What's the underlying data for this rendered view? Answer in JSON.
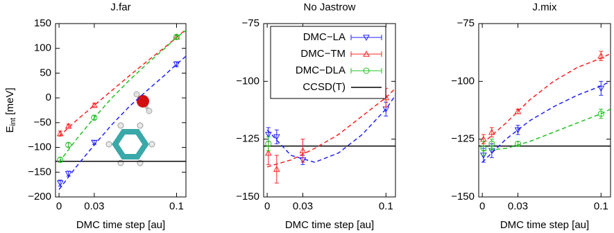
{
  "chart_data": [
    {
      "type": "scatter",
      "title": "J.far",
      "ylabel": [
        "E",
        "int",
        " [meV]"
      ],
      "xlabel": "DMC time step [au]",
      "x": [
        0.001,
        0.008,
        0.03,
        0.1
      ],
      "xlim": [
        -0.003,
        0.108
      ],
      "xticks": [
        0,
        0.03,
        0.1
      ],
      "ylim": [
        -200,
        150
      ],
      "yticks": [
        {
          "value": -200,
          "label": "−200"
        },
        {
          "value": -150,
          "label": "−150"
        },
        {
          "value": -100,
          "label": "−100"
        },
        {
          "value": -50,
          "label": "−50"
        },
        0,
        50,
        100,
        150
      ],
      "legend": false,
      "series": [
        {
          "name": "DMC−LA",
          "color": "#2020ff",
          "marker": "triangle-down",
          "values": [
            -172,
            -153,
            -90,
            68
          ],
          "errors": [
            6,
            5,
            4,
            5
          ],
          "fit": {
            "x": [
              0,
              0.015,
              0.03,
              0.045,
              0.06,
              0.075,
              0.09,
              0.1,
              0.108
            ],
            "values": [
              -185,
              -138,
              -95,
              -54,
              -17,
              15,
              46,
              68,
              84
            ]
          }
        },
        {
          "name": "DMC−TM",
          "color": "#ff2020",
          "marker": "triangle-up",
          "values": [
            -72,
            -57,
            -15,
            123
          ],
          "errors": [
            5,
            4,
            4,
            4
          ],
          "fit": {
            "x": [
              0,
              0.015,
              0.03,
              0.045,
              0.06,
              0.075,
              0.09,
              0.1,
              0.108
            ],
            "values": [
              -78,
              -45,
              -15,
              15,
              45,
              74,
              102,
              122,
              138
            ]
          }
        },
        {
          "name": "DMC−DLA",
          "color": "#20c020",
          "marker": "circle",
          "values": [
            -125,
            -95,
            -40,
            123
          ],
          "errors": [
            5,
            4,
            4,
            4
          ],
          "fit": {
            "x": [
              0,
              0.015,
              0.03,
              0.045,
              0.06,
              0.075,
              0.09,
              0.1,
              0.108
            ],
            "values": [
              -130,
              -83,
              -40,
              0,
              36,
              69,
              100,
              122,
              136
            ]
          }
        }
      ],
      "reference": {
        "name": "CCSD(T)",
        "color": "#000000",
        "value": -128
      }
    },
    {
      "type": "scatter",
      "title": "No Jastrow",
      "xlabel": "DMC time step [au]",
      "x": [
        0.001,
        0.008,
        0.03,
        0.1
      ],
      "xlim": [
        -0.003,
        0.108
      ],
      "xticks": [
        0,
        0.03,
        0.1
      ],
      "ylim": [
        -150,
        -75
      ],
      "yticks": [
        {
          "value": -150,
          "label": "−150"
        },
        {
          "value": -125,
          "label": "−125"
        },
        {
          "value": -100,
          "label": "−100"
        },
        {
          "value": -75,
          "label": "−75"
        }
      ],
      "legend": true,
      "series": [
        {
          "name": "DMC−LA",
          "color": "#2020ff",
          "marker": "triangle-down",
          "values": [
            -123,
            -124,
            -134,
            -112
          ],
          "errors": [
            3,
            3,
            2,
            3
          ],
          "fit": {
            "x": [
              0,
              0.02,
              0.04,
              0.06,
              0.08,
              0.1,
              0.108
            ],
            "values": [
              -121,
              -132,
              -135,
              -131,
              -123,
              -112,
              -106
            ]
          }
        },
        {
          "name": "DMC−TM",
          "color": "#ff2020",
          "marker": "triangle-up",
          "values": [
            -131,
            -138,
            -130,
            -107
          ],
          "errors": [
            5,
            6,
            5,
            4
          ],
          "fit": {
            "x": [
              0,
              0.02,
              0.04,
              0.06,
              0.08,
              0.1,
              0.108
            ],
            "values": [
              -137,
              -134,
              -129,
              -123,
              -115,
              -107,
              -103
            ]
          }
        },
        {
          "name": "DMC−DLA",
          "color": "#20c020",
          "marker": "circle",
          "values": [
            -127,
            null,
            null,
            null
          ],
          "errors": [
            3,
            null,
            null,
            null
          ]
        }
      ],
      "reference": {
        "name": "CCSD(T)",
        "color": "#000000",
        "value": -128
      }
    },
    {
      "type": "scatter",
      "title": "J.mix",
      "xlabel": "DMC time step [au]",
      "x": [
        0.001,
        0.008,
        0.03,
        0.1
      ],
      "xlim": [
        -0.003,
        0.108
      ],
      "xticks": [
        0,
        0.03,
        0.1
      ],
      "ylim": [
        -150,
        -75
      ],
      "yticks": [
        {
          "value": -150,
          "label": "−150"
        },
        {
          "value": -125,
          "label": "−125"
        },
        {
          "value": -100,
          "label": "−100"
        },
        {
          "value": -75,
          "label": "−75"
        }
      ],
      "legend": false,
      "series": [
        {
          "name": "DMC−LA",
          "color": "#2020ff",
          "marker": "triangle-down",
          "values": [
            -132,
            -130,
            -121,
            -103
          ],
          "errors": [
            3,
            3,
            2,
            3
          ],
          "fit": {
            "x": [
              0,
              0.02,
              0.04,
              0.06,
              0.08,
              0.1,
              0.108
            ],
            "values": [
              -135,
              -125,
              -117,
              -111,
              -106,
              -102,
              -100
            ]
          }
        },
        {
          "name": "DMC−TM",
          "color": "#ff2020",
          "marker": "triangle-up",
          "values": [
            -125,
            -122,
            -113,
            -89
          ],
          "errors": [
            2,
            2,
            1,
            2
          ],
          "fit": {
            "x": [
              0,
              0.02,
              0.04,
              0.06,
              0.08,
              0.1,
              0.108
            ],
            "values": [
              -127,
              -118,
              -108,
              -100,
              -94,
              -90,
              -88
            ]
          }
        },
        {
          "name": "DMC−DLA",
          "color": "#20c020",
          "marker": "circle",
          "values": [
            -129,
            -127,
            -127,
            -114
          ],
          "errors": [
            3,
            2,
            1,
            2
          ],
          "fit": {
            "x": [
              0,
              0.02,
              0.04,
              0.06,
              0.08,
              0.1,
              0.108
            ],
            "values": [
              -130,
              -129,
              -126,
              -122,
              -118,
              -114,
              -112
            ]
          }
        }
      ],
      "reference": {
        "name": "CCSD(T)",
        "color": "#000000",
        "value": -128
      }
    }
  ]
}
